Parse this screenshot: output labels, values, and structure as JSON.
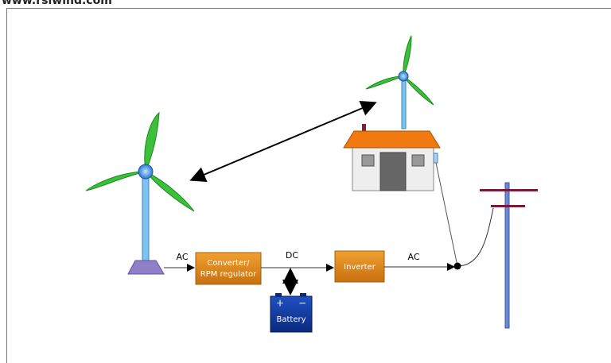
{
  "header": {
    "title": "www.rsiwind.com"
  },
  "nodes": [
    {
      "label": [
        "Converter/",
        "RPM regulator"
      ]
    },
    {
      "label": [
        "Inverter"
      ]
    },
    {
      "label": [
        "Battery"
      ],
      "terminals": [
        "+",
        "−"
      ]
    }
  ],
  "edges": [
    {
      "label": "AC"
    },
    {
      "label": "DC"
    },
    {
      "label": "AC"
    }
  ]
}
